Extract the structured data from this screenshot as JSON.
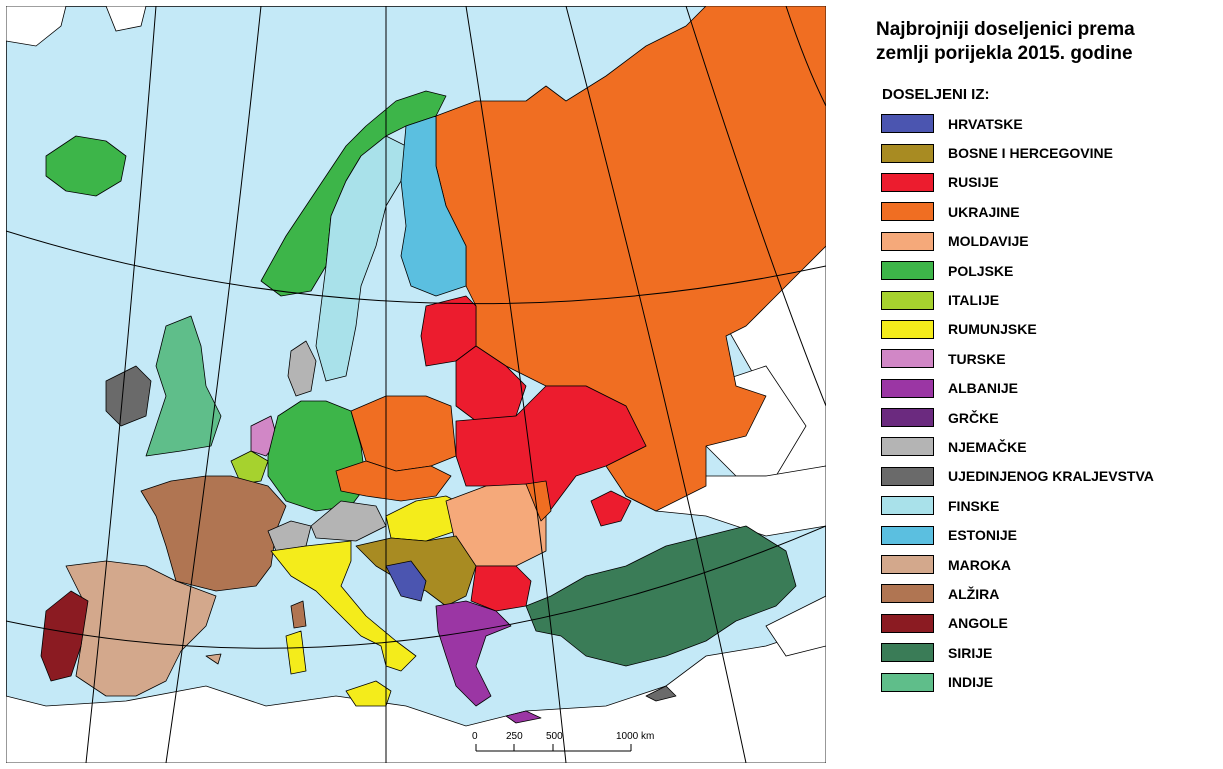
{
  "legend": {
    "title_line1": "Najbrojniji doseljenici prema",
    "title_line2": "zemlji porijekla 2015. godine",
    "subheading": "DOSELJENI IZ:",
    "items": [
      {
        "label": "HRVATSKE",
        "color": "#4b55b0"
      },
      {
        "label": "BOSNE I HERCEGOVINE",
        "color": "#a88b22"
      },
      {
        "label": "RUSIJE",
        "color": "#ec1c2e"
      },
      {
        "label": "UKRAJINE",
        "color": "#f06e22"
      },
      {
        "label": "MOLDAVIJE",
        "color": "#f5a97a"
      },
      {
        "label": "POLJSKE",
        "color": "#3db549"
      },
      {
        "label": "ITALIJE",
        "color": "#a6d22e"
      },
      {
        "label": "RUMUNJSKE",
        "color": "#f4ec1b"
      },
      {
        "label": "TURSKE",
        "color": "#d187c6"
      },
      {
        "label": "ALBANIJE",
        "color": "#9b36a4"
      },
      {
        "label": "GRČKE",
        "color": "#6b2a7f"
      },
      {
        "label": "NJEMAČKE",
        "color": "#b4b4b4"
      },
      {
        "label": "UJEDINJENOG KRALJEVSTVA",
        "color": "#6a6a6a"
      },
      {
        "label": "FINSKE",
        "color": "#a9e1ea"
      },
      {
        "label": "ESTONIJE",
        "color": "#5bbfe0"
      },
      {
        "label": "MAROKA",
        "color": "#d3a88c"
      },
      {
        "label": "ALŽIRA",
        "color": "#b07552"
      },
      {
        "label": "ANGOLE",
        "color": "#8b1b22"
      },
      {
        "label": "SIRIJE",
        "color": "#3a7c57"
      },
      {
        "label": "INDIJE",
        "color": "#5fbe8a"
      }
    ]
  },
  "scale": {
    "ticks": [
      "0",
      "250",
      "500",
      "1000 km"
    ]
  },
  "colors": {
    "sea": "#c4e9f7",
    "other_land": "#ffffff",
    "border": "#000000"
  }
}
